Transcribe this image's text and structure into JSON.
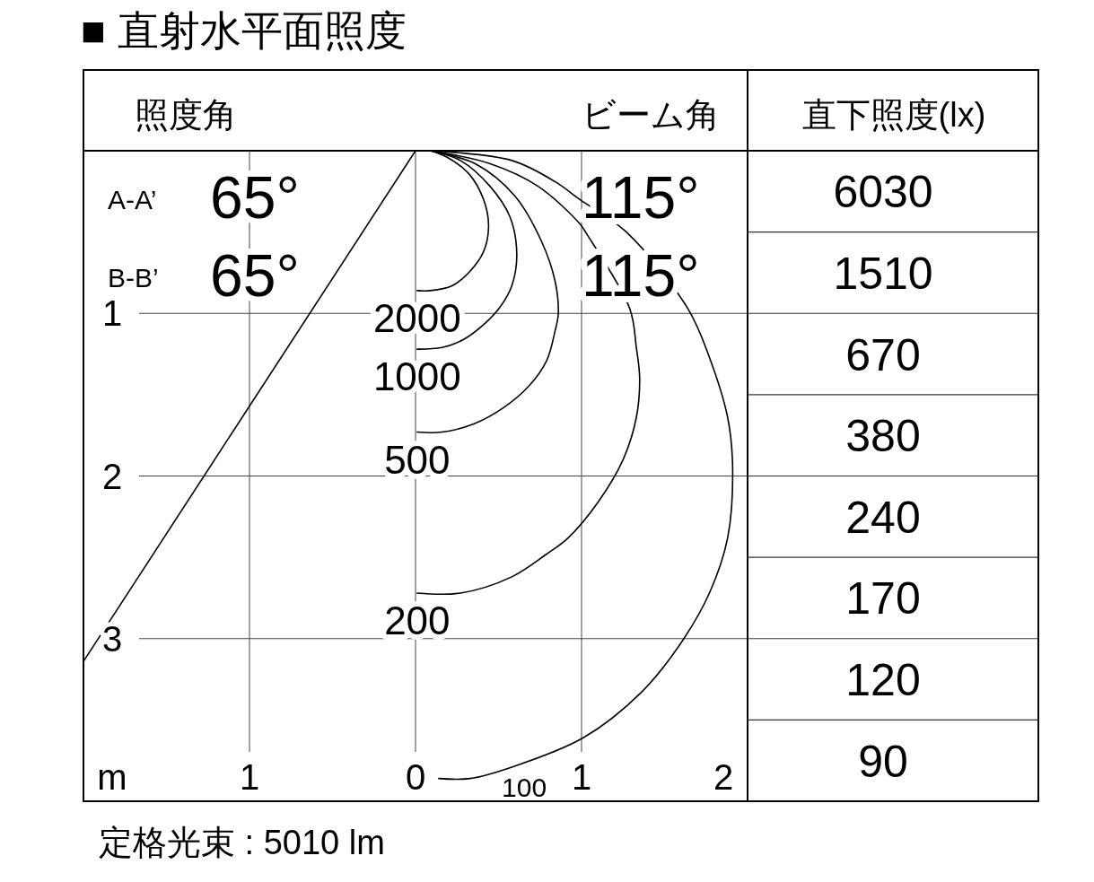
{
  "chart_data": [
    {
      "type": "line",
      "title": "■ 直射水平面照度",
      "xlabel": "m",
      "xlim": [
        -2,
        2
      ],
      "xticks": [
        {
          "value": -1,
          "label": "1"
        },
        0,
        1,
        2
      ],
      "ylim": [
        4,
        0
      ],
      "yticks": [
        1,
        2,
        3
      ],
      "grid": true,
      "series": [
        {
          "name": "2000",
          "color": "#000000",
          "x": [
            0.09,
            0.19,
            0.32,
            0.41,
            0.44,
            0.41,
            0.32,
            0.22,
            0.09,
            0.01
          ],
          "values": [
            0,
            0.04,
            0.14,
            0.3,
            0.46,
            0.62,
            0.75,
            0.83,
            0.86,
            0.86
          ]
        },
        {
          "name": "1000",
          "color": "#000000",
          "x": [
            0.09,
            0.27,
            0.45,
            0.57,
            0.61,
            0.58,
            0.51,
            0.42,
            0.29,
            0.16,
            0.01
          ],
          "values": [
            0,
            0.06,
            0.22,
            0.41,
            0.64,
            0.83,
            0.96,
            1.06,
            1.16,
            1.21,
            1.22
          ]
        },
        {
          "name": "500",
          "color": "#000000",
          "x": [
            0.09,
            0.36,
            0.6,
            0.76,
            0.84,
            0.86,
            0.84,
            0.79,
            0.68,
            0.53,
            0.35,
            0.16,
            0.01
          ],
          "values": [
            0,
            0.08,
            0.28,
            0.56,
            0.8,
            1.0,
            1.11,
            1.29,
            1.45,
            1.58,
            1.68,
            1.73,
            1.73
          ]
        },
        {
          "name": "200",
          "color": "#000000",
          "x": [
            0.09,
            0.45,
            0.74,
            0.99,
            1.03,
            1.29,
            1.33,
            1.35,
            1.33,
            1.25,
            1.1,
            0.92,
            0.79,
            0.58,
            0.27,
            0.01
          ],
          "values": [
            0,
            0.08,
            0.22,
            0.45,
            0.51,
            0.97,
            1.21,
            1.4,
            1.64,
            1.9,
            2.16,
            2.38,
            2.48,
            2.62,
            2.72,
            2.72
          ]
        },
        {
          "name": "100",
          "color": "#000000",
          "x": [
            0.09,
            0.58,
            0.84,
            0.99,
            1.27,
            1.64,
            1.77,
            1.88,
            1.91,
            1.88,
            1.77,
            1.59,
            1.36,
            1.01,
            0.58,
            0.33,
            0.14
          ],
          "values": [
            0,
            0.06,
            0.19,
            0.3,
            0.5,
            0.97,
            1.27,
            1.64,
            1.95,
            2.38,
            2.72,
            3.04,
            3.33,
            3.61,
            3.79,
            3.86,
            3.86
          ]
        },
        {
          "color": "#000000",
          "x": [
            0,
            -2
          ],
          "values": [
            0,
            3.14
          ]
        }
      ],
      "annotations": [
        "照度角",
        "ビーム角",
        "A-A’",
        "65°",
        "B-B’",
        "65°",
        "115°",
        "115°",
        "定格光束 : 5010 lm"
      ]
    },
    {
      "type": "other",
      "title": "直下照度(lx)",
      "values": [
        6030,
        1510,
        670,
        380,
        240,
        170,
        120,
        90
      ],
      "data_labels": true
    }
  ]
}
